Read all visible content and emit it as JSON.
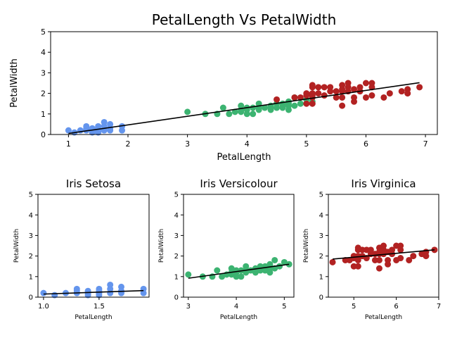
{
  "colors": {
    "setosa": "#6495ed",
    "versicolour": "#3cb371",
    "virginica": "#b22222",
    "fit": "#000000"
  },
  "chart_data": [
    {
      "type": "scatter",
      "title": "PetalLength Vs PetalWidth",
      "xlabel": "PetalLength",
      "ylabel": "PetalWidth",
      "xlim": [
        0.7,
        7.2
      ],
      "ylim": [
        0,
        5
      ],
      "xticks": [
        "1",
        "2",
        "3",
        "4",
        "5",
        "6",
        "7"
      ],
      "yticks": [
        "0",
        "1",
        "2",
        "3",
        "4",
        "5"
      ],
      "grid": false,
      "fit_line": {
        "x": [
          1.0,
          6.9
        ],
        "y": [
          0.05,
          2.52
        ]
      },
      "series": [
        {
          "color": "setosa",
          "points": [
            [
              1.0,
              0.2
            ],
            [
              1.1,
              0.1
            ],
            [
              1.2,
              0.2
            ],
            [
              1.3,
              0.2
            ],
            [
              1.3,
              0.3
            ],
            [
              1.3,
              0.4
            ],
            [
              1.4,
              0.1
            ],
            [
              1.4,
              0.2
            ],
            [
              1.4,
              0.3
            ],
            [
              1.5,
              0.1
            ],
            [
              1.5,
              0.2
            ],
            [
              1.5,
              0.3
            ],
            [
              1.5,
              0.4
            ],
            [
              1.6,
              0.2
            ],
            [
              1.6,
              0.4
            ],
            [
              1.6,
              0.6
            ],
            [
              1.7,
              0.2
            ],
            [
              1.7,
              0.3
            ],
            [
              1.7,
              0.5
            ],
            [
              1.9,
              0.2
            ],
            [
              1.9,
              0.4
            ]
          ]
        },
        {
          "color": "versicolour",
          "points": [
            [
              3.0,
              1.1
            ],
            [
              3.3,
              1.0
            ],
            [
              3.5,
              1.0
            ],
            [
              3.6,
              1.3
            ],
            [
              3.7,
              1.0
            ],
            [
              3.8,
              1.1
            ],
            [
              3.9,
              1.1
            ],
            [
              3.9,
              1.2
            ],
            [
              3.9,
              1.4
            ],
            [
              4.0,
              1.0
            ],
            [
              4.0,
              1.2
            ],
            [
              4.0,
              1.3
            ],
            [
              4.1,
              1.0
            ],
            [
              4.1,
              1.3
            ],
            [
              4.2,
              1.2
            ],
            [
              4.2,
              1.3
            ],
            [
              4.2,
              1.5
            ],
            [
              4.3,
              1.3
            ],
            [
              4.4,
              1.2
            ],
            [
              4.4,
              1.3
            ],
            [
              4.4,
              1.4
            ],
            [
              4.5,
              1.3
            ],
            [
              4.5,
              1.5
            ],
            [
              4.6,
              1.3
            ],
            [
              4.6,
              1.4
            ],
            [
              4.6,
              1.5
            ],
            [
              4.7,
              1.2
            ],
            [
              4.7,
              1.4
            ],
            [
              4.7,
              1.5
            ],
            [
              4.7,
              1.6
            ],
            [
              4.8,
              1.4
            ],
            [
              4.8,
              1.8
            ],
            [
              4.9,
              1.5
            ],
            [
              5.0,
              1.7
            ],
            [
              5.1,
              1.6
            ]
          ]
        },
        {
          "color": "virginica",
          "points": [
            [
              4.5,
              1.7
            ],
            [
              4.8,
              1.8
            ],
            [
              4.9,
              1.8
            ],
            [
              5.0,
              1.5
            ],
            [
              5.0,
              1.9
            ],
            [
              5.0,
              2.0
            ],
            [
              5.1,
              1.5
            ],
            [
              5.1,
              1.8
            ],
            [
              5.1,
              1.9
            ],
            [
              5.1,
              2.0
            ],
            [
              5.1,
              2.3
            ],
            [
              5.1,
              2.4
            ],
            [
              5.2,
              2.0
            ],
            [
              5.2,
              2.3
            ],
            [
              5.3,
              1.9
            ],
            [
              5.3,
              2.3
            ],
            [
              5.4,
              2.1
            ],
            [
              5.4,
              2.3
            ],
            [
              5.5,
              1.8
            ],
            [
              5.5,
              2.1
            ],
            [
              5.6,
              1.4
            ],
            [
              5.6,
              1.8
            ],
            [
              5.6,
              2.1
            ],
            [
              5.6,
              2.2
            ],
            [
              5.6,
              2.4
            ],
            [
              5.7,
              2.1
            ],
            [
              5.7,
              2.3
            ],
            [
              5.7,
              2.5
            ],
            [
              5.8,
              1.6
            ],
            [
              5.8,
              1.8
            ],
            [
              5.8,
              2.2
            ],
            [
              5.9,
              2.1
            ],
            [
              5.9,
              2.3
            ],
            [
              6.0,
              1.8
            ],
            [
              6.0,
              2.5
            ],
            [
              6.1,
              1.9
            ],
            [
              6.1,
              2.3
            ],
            [
              6.1,
              2.5
            ],
            [
              6.3,
              1.8
            ],
            [
              6.4,
              2.0
            ],
            [
              6.6,
              2.1
            ],
            [
              6.7,
              2.0
            ],
            [
              6.7,
              2.2
            ],
            [
              6.9,
              2.3
            ]
          ]
        }
      ]
    },
    {
      "type": "scatter",
      "title": "Iris Setosa",
      "xlabel": "PetalLength",
      "ylabel": "PetalWidth",
      "xlim": [
        0.95,
        1.95
      ],
      "ylim": [
        0,
        5
      ],
      "xticks": [
        "1.0",
        "1.5"
      ],
      "yticks": [
        "0",
        "1",
        "2",
        "3",
        "4",
        "5"
      ],
      "grid": false,
      "fit_line": {
        "x": [
          1.0,
          1.9
        ],
        "y": [
          0.15,
          0.32
        ]
      },
      "series": [
        {
          "color": "setosa",
          "points": [
            [
              1.0,
              0.2
            ],
            [
              1.1,
              0.1
            ],
            [
              1.2,
              0.2
            ],
            [
              1.3,
              0.2
            ],
            [
              1.3,
              0.3
            ],
            [
              1.3,
              0.4
            ],
            [
              1.4,
              0.1
            ],
            [
              1.4,
              0.2
            ],
            [
              1.4,
              0.3
            ],
            [
              1.5,
              0.1
            ],
            [
              1.5,
              0.2
            ],
            [
              1.5,
              0.3
            ],
            [
              1.5,
              0.4
            ],
            [
              1.6,
              0.2
            ],
            [
              1.6,
              0.4
            ],
            [
              1.6,
              0.6
            ],
            [
              1.7,
              0.2
            ],
            [
              1.7,
              0.3
            ],
            [
              1.7,
              0.5
            ],
            [
              1.9,
              0.2
            ],
            [
              1.9,
              0.4
            ]
          ]
        }
      ]
    },
    {
      "type": "scatter",
      "title": "Iris Versicolour",
      "xlabel": "PetalLength",
      "ylabel": "PetalWidth",
      "xlim": [
        2.9,
        5.2
      ],
      "ylim": [
        0,
        5
      ],
      "xticks": [
        "3",
        "4",
        "5"
      ],
      "yticks": [
        "0",
        "1",
        "2",
        "3",
        "4",
        "5"
      ],
      "grid": false,
      "fit_line": {
        "x": [
          3.0,
          5.1
        ],
        "y": [
          0.92,
          1.6
        ]
      },
      "series": [
        {
          "color": "versicolour",
          "points": [
            [
              3.0,
              1.1
            ],
            [
              3.3,
              1.0
            ],
            [
              3.5,
              1.0
            ],
            [
              3.6,
              1.3
            ],
            [
              3.7,
              1.0
            ],
            [
              3.8,
              1.1
            ],
            [
              3.9,
              1.1
            ],
            [
              3.9,
              1.2
            ],
            [
              3.9,
              1.4
            ],
            [
              4.0,
              1.0
            ],
            [
              4.0,
              1.2
            ],
            [
              4.0,
              1.3
            ],
            [
              4.1,
              1.0
            ],
            [
              4.1,
              1.3
            ],
            [
              4.2,
              1.2
            ],
            [
              4.2,
              1.3
            ],
            [
              4.2,
              1.5
            ],
            [
              4.3,
              1.3
            ],
            [
              4.4,
              1.2
            ],
            [
              4.4,
              1.3
            ],
            [
              4.4,
              1.4
            ],
            [
              4.5,
              1.3
            ],
            [
              4.5,
              1.5
            ],
            [
              4.6,
              1.3
            ],
            [
              4.6,
              1.4
            ],
            [
              4.6,
              1.5
            ],
            [
              4.7,
              1.2
            ],
            [
              4.7,
              1.4
            ],
            [
              4.7,
              1.5
            ],
            [
              4.7,
              1.6
            ],
            [
              4.8,
              1.4
            ],
            [
              4.8,
              1.8
            ],
            [
              4.9,
              1.5
            ],
            [
              5.0,
              1.7
            ],
            [
              5.1,
              1.6
            ]
          ]
        }
      ]
    },
    {
      "type": "scatter",
      "title": "Iris Virginica",
      "xlabel": "PetalLength",
      "ylabel": "PetalWidth",
      "xlim": [
        4.4,
        7.0
      ],
      "ylim": [
        0,
        5
      ],
      "xticks": [
        "5",
        "6",
        "7"
      ],
      "yticks": [
        "0",
        "1",
        "2",
        "3",
        "4",
        "5"
      ],
      "grid": false,
      "fit_line": {
        "x": [
          4.5,
          6.9
        ],
        "y": [
          1.85,
          2.3
        ]
      },
      "series": [
        {
          "color": "virginica",
          "points": [
            [
              4.5,
              1.7
            ],
            [
              4.8,
              1.8
            ],
            [
              4.9,
              1.8
            ],
            [
              5.0,
              1.5
            ],
            [
              5.0,
              1.9
            ],
            [
              5.0,
              2.0
            ],
            [
              5.1,
              1.5
            ],
            [
              5.1,
              1.8
            ],
            [
              5.1,
              1.9
            ],
            [
              5.1,
              2.0
            ],
            [
              5.1,
              2.3
            ],
            [
              5.1,
              2.4
            ],
            [
              5.2,
              2.0
            ],
            [
              5.2,
              2.3
            ],
            [
              5.3,
              1.9
            ],
            [
              5.3,
              2.3
            ],
            [
              5.4,
              2.1
            ],
            [
              5.4,
              2.3
            ],
            [
              5.5,
              1.8
            ],
            [
              5.5,
              2.1
            ],
            [
              5.6,
              1.4
            ],
            [
              5.6,
              1.8
            ],
            [
              5.6,
              2.1
            ],
            [
              5.6,
              2.2
            ],
            [
              5.6,
              2.4
            ],
            [
              5.7,
              2.1
            ],
            [
              5.7,
              2.3
            ],
            [
              5.7,
              2.5
            ],
            [
              5.8,
              1.6
            ],
            [
              5.8,
              1.8
            ],
            [
              5.8,
              2.2
            ],
            [
              5.9,
              2.1
            ],
            [
              5.9,
              2.3
            ],
            [
              6.0,
              1.8
            ],
            [
              6.0,
              2.5
            ],
            [
              6.1,
              1.9
            ],
            [
              6.1,
              2.3
            ],
            [
              6.1,
              2.5
            ],
            [
              6.3,
              1.8
            ],
            [
              6.4,
              2.0
            ],
            [
              6.6,
              2.1
            ],
            [
              6.7,
              2.0
            ],
            [
              6.7,
              2.2
            ],
            [
              6.9,
              2.3
            ]
          ]
        }
      ]
    }
  ]
}
